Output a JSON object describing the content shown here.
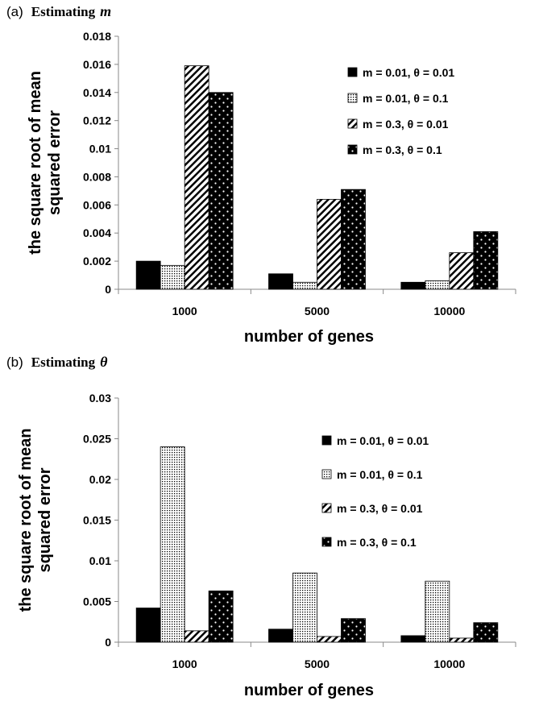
{
  "chart_data": [
    {
      "type": "bar",
      "panel_label": "(a)",
      "title_prefix": "Estimating",
      "title_symbol": "m",
      "categories": [
        "1000",
        "5000",
        "10000"
      ],
      "xlabel": "number of genes",
      "ylabel_lines": [
        "the square root of mean",
        "squared error"
      ],
      "ylim": [
        0,
        0.018
      ],
      "yticks": [
        0,
        0.002,
        0.004,
        0.006,
        0.008,
        0.01,
        0.012,
        0.014,
        0.016,
        0.018
      ],
      "ytick_labels": [
        "0",
        "0.002",
        "0.004",
        "0.006",
        "0.008",
        "0.01",
        "0.012",
        "0.014",
        "0.016",
        "0.018"
      ],
      "legend_position": "right",
      "series": [
        {
          "name": "m = 0.01, θ = 0.01",
          "pattern": "solid",
          "values": [
            0.002,
            0.0011,
            0.0005
          ]
        },
        {
          "name": "m = 0.01,  θ = 0.1",
          "pattern": "fine-dots",
          "values": [
            0.0017,
            0.0005,
            0.0006
          ]
        },
        {
          "name": "m = 0.3,  θ = 0.01",
          "pattern": "diagonal",
          "values": [
            0.0159,
            0.0064,
            0.0026
          ]
        },
        {
          "name": "m = 0.3,  θ = 0.1",
          "pattern": "white-dots",
          "values": [
            0.014,
            0.0071,
            0.0041
          ]
        }
      ]
    },
    {
      "type": "bar",
      "panel_label": "(b)",
      "title_prefix": "Estimating",
      "title_symbol": "θ",
      "categories": [
        "1000",
        "5000",
        "10000"
      ],
      "xlabel": "number of genes",
      "ylabel_lines": [
        "the square root of mean",
        "squared error"
      ],
      "ylim": [
        0,
        0.03
      ],
      "yticks": [
        0,
        0.005,
        0.01,
        0.015,
        0.02,
        0.025,
        0.03
      ],
      "ytick_labels": [
        "0",
        "0.005",
        "0.01",
        "0.015",
        "0.02",
        "0.025",
        "0.03"
      ],
      "legend_position": "right",
      "series": [
        {
          "name": "m = 0.01, θ = 0.01",
          "pattern": "solid",
          "values": [
            0.0042,
            0.0016,
            0.0008
          ]
        },
        {
          "name": "m = 0.01,  θ = 0.1",
          "pattern": "fine-dots",
          "values": [
            0.024,
            0.0085,
            0.0075
          ]
        },
        {
          "name": "m = 0.3,  θ = 0.01",
          "pattern": "diagonal",
          "values": [
            0.0014,
            0.0007,
            0.0005
          ]
        },
        {
          "name": "m = 0.3,  θ = 0.1",
          "pattern": "white-dots",
          "values": [
            0.0063,
            0.0029,
            0.0024
          ]
        }
      ]
    }
  ]
}
